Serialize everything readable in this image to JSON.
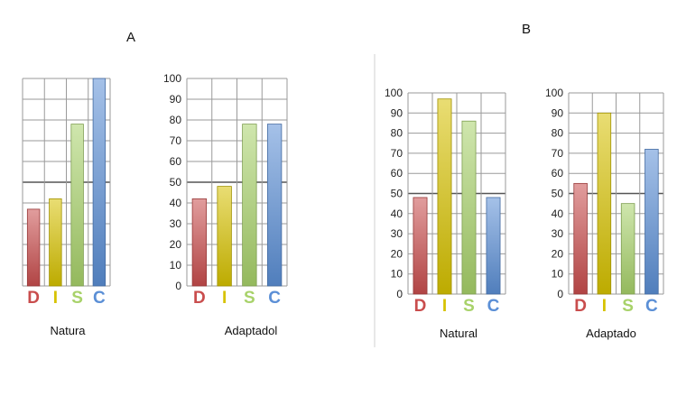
{
  "panels": [
    {
      "label": "A"
    },
    {
      "label": "B"
    }
  ],
  "colors": {
    "D": "#c94d4d",
    "I": "#d7c200",
    "S": "#a8d26a",
    "C": "#5b8fd6",
    "grid": "#9a9a9a",
    "midline": "#555555"
  },
  "chart_data": [
    {
      "type": "bar",
      "panel": "A",
      "title": "Natura",
      "categories": [
        "D",
        "I",
        "S",
        "C"
      ],
      "values": [
        37,
        42,
        78,
        100
      ],
      "ylim": [
        0,
        100
      ],
      "yticks_labeled": false,
      "grid": true
    },
    {
      "type": "bar",
      "panel": "A",
      "title": "Adaptadol",
      "categories": [
        "D",
        "I",
        "S",
        "C"
      ],
      "values": [
        42,
        48,
        78,
        78
      ],
      "ylim": [
        0,
        100
      ],
      "yticks": [
        0,
        10,
        20,
        30,
        40,
        50,
        60,
        70,
        80,
        90,
        100
      ],
      "yticks_labeled": true,
      "grid": true
    },
    {
      "type": "bar",
      "panel": "B",
      "title": "Natural",
      "categories": [
        "D",
        "I",
        "S",
        "C"
      ],
      "values": [
        48,
        97,
        86,
        48
      ],
      "ylim": [
        0,
        100
      ],
      "yticks": [
        0,
        10,
        20,
        30,
        40,
        50,
        60,
        70,
        80,
        90,
        100
      ],
      "yticks_labeled": true,
      "grid": true
    },
    {
      "type": "bar",
      "panel": "B",
      "title": "Adaptado",
      "categories": [
        "D",
        "I",
        "S",
        "C"
      ],
      "values": [
        55,
        90,
        45,
        72
      ],
      "ylim": [
        0,
        100
      ],
      "yticks": [
        0,
        10,
        20,
        30,
        40,
        50,
        60,
        70,
        80,
        90,
        100
      ],
      "yticks_labeled": true,
      "grid": true
    }
  ]
}
